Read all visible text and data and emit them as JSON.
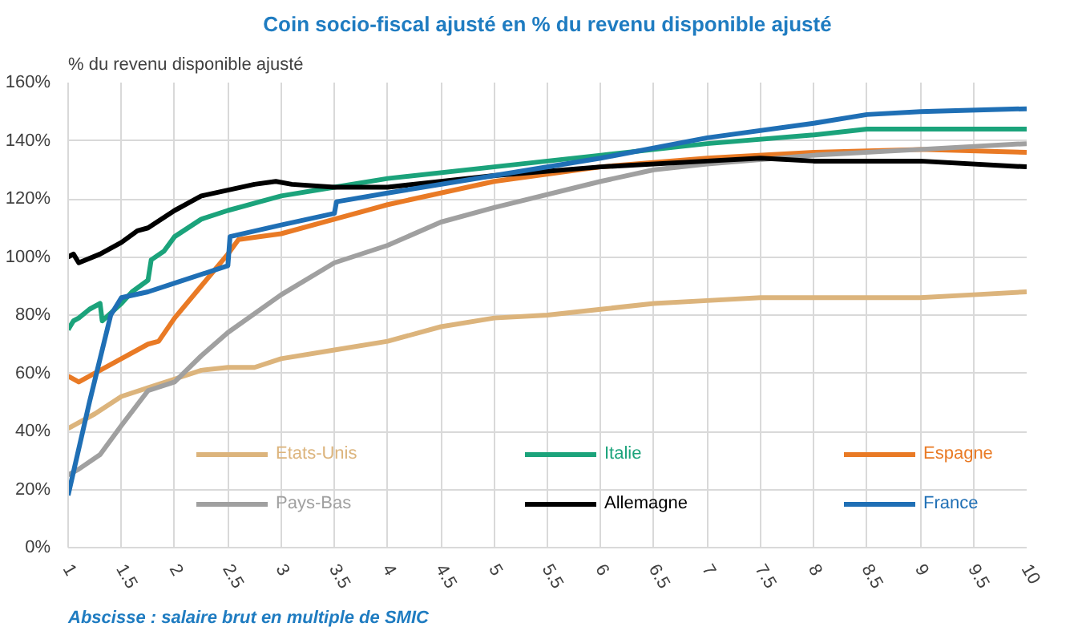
{
  "chart_data": {
    "type": "line",
    "title": "Coin socio-fiscal ajusté en % du revenu disponible ajusté",
    "ylabel": "% du revenu disponible ajusté",
    "annotations": [
      "Abscisse : salaire brut en multiple de SMIC"
    ],
    "xlim": [
      1,
      10
    ],
    "xticks": [
      1,
      1.5,
      2,
      2.5,
      3,
      3.5,
      4,
      4.5,
      5,
      5.5,
      6,
      6.5,
      7,
      7.5,
      8,
      8.5,
      9,
      9.5,
      10
    ],
    "ylim": [
      0,
      160
    ],
    "yticks": [
      {
        "value": 0,
        "label": "0%"
      },
      {
        "value": 20,
        "label": "20%"
      },
      {
        "value": 40,
        "label": "40%"
      },
      {
        "value": 60,
        "label": "60%"
      },
      {
        "value": 80,
        "label": "80%"
      },
      {
        "value": 100,
        "label": "100%"
      },
      {
        "value": 120,
        "label": "120%"
      },
      {
        "value": 140,
        "label": "140%"
      },
      {
        "value": 160,
        "label": "160%"
      }
    ],
    "grid": true,
    "legend": "bottom",
    "line_style": "solid",
    "marker": "none",
    "series": [
      {
        "name": "Etats-Unis",
        "color": "#dcb47c",
        "x": [
          1,
          1.1,
          1.25,
          1.5,
          1.75,
          2,
          2.25,
          2.5,
          2.75,
          3,
          3.5,
          4,
          4.5,
          5,
          5.5,
          6,
          6.5,
          7,
          7.5,
          8,
          8.5,
          9,
          9.5,
          10
        ],
        "values": [
          41,
          43,
          46,
          52,
          55,
          58,
          61,
          62,
          62,
          65,
          68,
          71,
          76,
          79,
          80,
          82,
          84,
          85,
          86,
          86,
          86,
          86,
          87,
          88
        ]
      },
      {
        "name": "Italie",
        "color": "#1ba37b",
        "x": [
          1,
          1.05,
          1.1,
          1.2,
          1.3,
          1.32,
          1.5,
          1.6,
          1.75,
          1.78,
          1.9,
          2,
          2.25,
          2.5,
          3,
          3.5,
          4,
          5,
          6,
          7,
          8,
          8.5,
          9,
          10
        ],
        "values": [
          75,
          78,
          79,
          82,
          84,
          78,
          84,
          88,
          92,
          99,
          102,
          107,
          113,
          116,
          121,
          124,
          127,
          131,
          135,
          139,
          142,
          144,
          144,
          144
        ]
      },
      {
        "name": "Espagne",
        "color": "#e97a25",
        "x": [
          1,
          1.1,
          1.3,
          1.5,
          1.75,
          1.85,
          2,
          2.25,
          2.5,
          2.6,
          3,
          3.5,
          4,
          5,
          6,
          7,
          8,
          9,
          10
        ],
        "values": [
          59,
          57,
          61,
          65,
          70,
          71,
          79,
          90,
          101,
          106,
          108,
          113,
          118,
          126,
          131,
          134,
          136,
          137,
          136
        ]
      },
      {
        "name": "Pays-Bas",
        "color": "#a0a0a0",
        "x": [
          1,
          1.1,
          1.3,
          1.5,
          1.75,
          2,
          2.25,
          2.5,
          3,
          3.5,
          4,
          4.5,
          5,
          6,
          6.5,
          7,
          8,
          9,
          10
        ],
        "values": [
          25,
          27,
          32,
          42,
          54,
          57,
          66,
          74,
          87,
          98,
          104,
          112,
          117,
          126,
          130,
          132,
          135,
          137,
          139
        ]
      },
      {
        "name": "Allemagne",
        "color": "#000000",
        "x": [
          1,
          1.05,
          1.1,
          1.3,
          1.5,
          1.65,
          1.75,
          2,
          2.25,
          2.5,
          2.75,
          2.95,
          3.1,
          3.5,
          4,
          4.5,
          5,
          6,
          7,
          7.5,
          8,
          9,
          10
        ],
        "values": [
          100,
          101,
          98,
          101,
          105,
          109,
          110,
          116,
          121,
          123,
          125,
          126,
          125,
          124,
          124,
          126,
          128,
          131,
          133,
          134,
          133,
          133,
          131
        ]
      },
      {
        "name": "France",
        "color": "#1f6fb5",
        "x": [
          1,
          1.2,
          1.4,
          1.5,
          1.75,
          2,
          2.5,
          2.52,
          3,
          3.5,
          3.52,
          4,
          5,
          6,
          7,
          8,
          8.5,
          9,
          10
        ],
        "values": [
          18,
          50,
          80,
          86,
          88,
          91,
          97,
          107,
          111,
          115,
          119,
          122,
          128,
          134,
          141,
          146,
          149,
          150,
          151
        ]
      }
    ]
  }
}
